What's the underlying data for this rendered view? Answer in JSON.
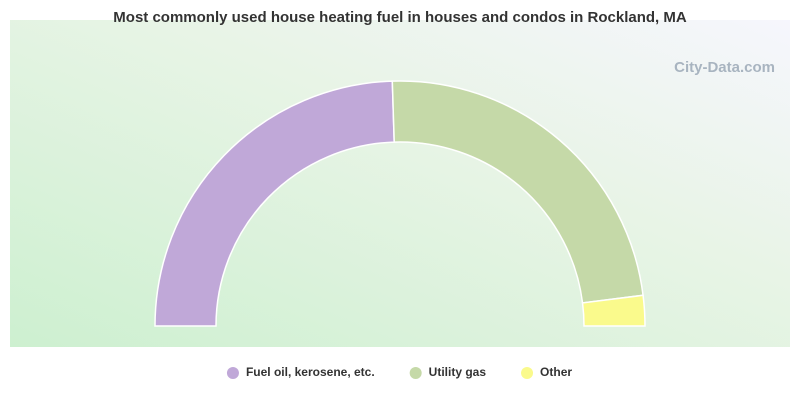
{
  "chart_data": {
    "type": "half-donut",
    "title": "Most commonly used house heating fuel in houses and condos in Rockland, MA",
    "watermark": "City-Data.com",
    "categories": [
      "Fuel oil, kerosene, etc.",
      "Utility gas",
      "Other"
    ],
    "values": [
      49,
      47,
      4
    ],
    "colors": [
      "#c0a8d8",
      "#c5d9a8",
      "#fafa8c"
    ],
    "legend": "bottom"
  }
}
